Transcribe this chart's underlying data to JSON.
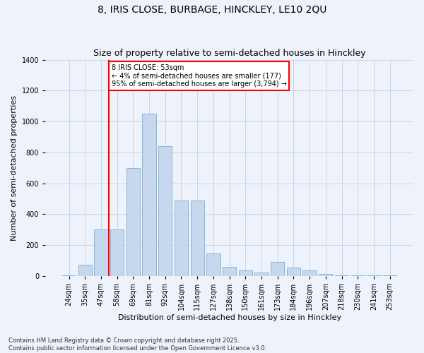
{
  "title1": "8, IRIS CLOSE, BURBAGE, HINCKLEY, LE10 2QU",
  "title2": "Size of property relative to semi-detached houses in Hinckley",
  "xlabel": "Distribution of semi-detached houses by size in Hinckley",
  "ylabel": "Number of semi-detached properties",
  "categories": [
    "24sqm",
    "35sqm",
    "47sqm",
    "58sqm",
    "69sqm",
    "81sqm",
    "92sqm",
    "104sqm",
    "115sqm",
    "127sqm",
    "138sqm",
    "150sqm",
    "161sqm",
    "173sqm",
    "184sqm",
    "196sqm",
    "207sqm",
    "218sqm",
    "230sqm",
    "241sqm",
    "253sqm"
  ],
  "values": [
    5,
    75,
    300,
    300,
    700,
    1050,
    840,
    490,
    490,
    145,
    60,
    35,
    25,
    90,
    55,
    35,
    15,
    5,
    5,
    3,
    5
  ],
  "bar_color": "#c5d8ed",
  "bar_edge_color": "#7bafd4",
  "annotation_text_line1": "8 IRIS CLOSE: 53sqm",
  "annotation_text_line2": "← 4% of semi-detached houses are smaller (177)",
  "annotation_text_line3": "95% of semi-detached houses are larger (3,794) →",
  "annotation_box_color": "white",
  "annotation_box_edge_color": "red",
  "vline_color": "red",
  "vline_x": 2.5,
  "ylim": [
    0,
    1400
  ],
  "yticks": [
    0,
    200,
    400,
    600,
    800,
    1000,
    1200,
    1400
  ],
  "footer_line1": "Contains HM Land Registry data © Crown copyright and database right 2025.",
  "footer_line2": "Contains public sector information licensed under the Open Government Licence v3.0.",
  "background_color": "#eef2fa",
  "grid_color": "#c8d4e8",
  "title_fontsize": 10,
  "subtitle_fontsize": 9,
  "tick_fontsize": 7,
  "ylabel_fontsize": 8,
  "xlabel_fontsize": 8,
  "annotation_fontsize": 7,
  "footer_fontsize": 6
}
